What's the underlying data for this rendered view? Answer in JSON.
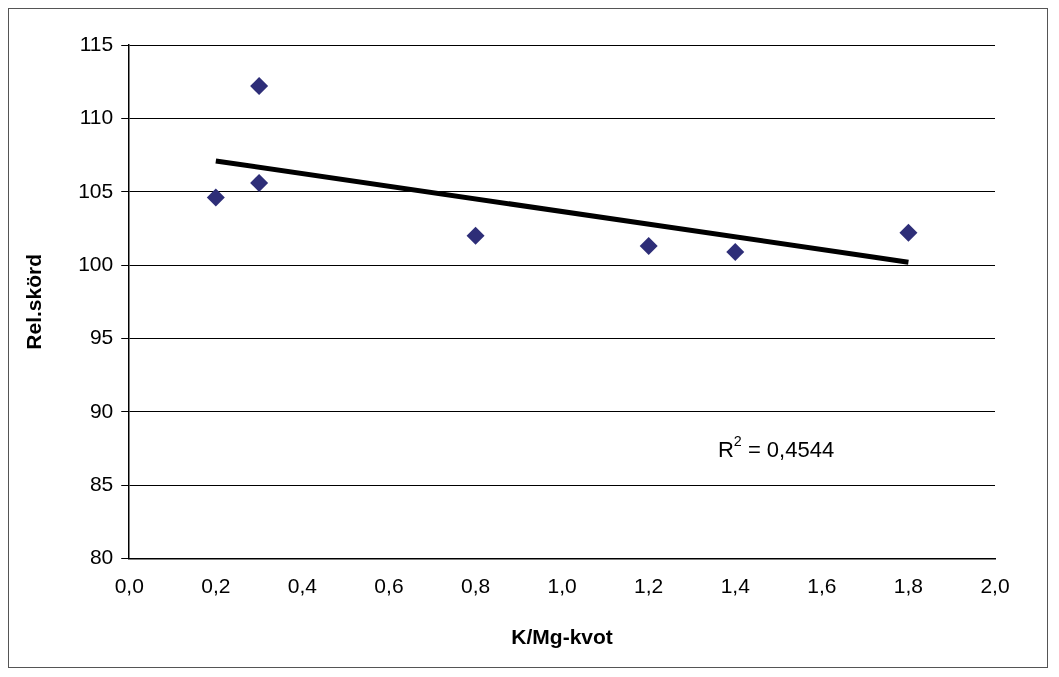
{
  "chart_data": {
    "type": "scatter",
    "xlabel": "K/Mg-kvot",
    "ylabel": "Rel.skörd",
    "x": [
      0.2,
      0.3,
      0.3,
      0.8,
      1.2,
      1.4,
      1.8
    ],
    "series": [
      {
        "type": "scatter",
        "color": "#2e2e78",
        "marker": "diamond",
        "values": [
          104.6,
          112.2,
          105.6,
          102.0,
          101.3,
          100.9,
          102.2
        ]
      },
      {
        "type": "line",
        "color": "#000000",
        "marker": "none",
        "line_style": "solid",
        "x": [
          0.2,
          1.8
        ],
        "values": [
          107.1,
          100.2
        ]
      }
    ],
    "xlim": [
      0,
      2
    ],
    "xticks": [
      {
        "value": 0,
        "label": "0,0"
      },
      {
        "value": 0.2,
        "label": "0,2"
      },
      {
        "value": 0.4,
        "label": "0,4"
      },
      {
        "value": 0.6,
        "label": "0,6"
      },
      {
        "value": 0.8,
        "label": "0,8"
      },
      {
        "value": 1,
        "label": "1,0"
      },
      {
        "value": 1.2,
        "label": "1,2"
      },
      {
        "value": 1.4,
        "label": "1,4"
      },
      {
        "value": 1.6,
        "label": "1,6"
      },
      {
        "value": 1.8,
        "label": "1,8"
      },
      {
        "value": 2,
        "label": "2,0"
      }
    ],
    "ylim": [
      80,
      115
    ],
    "yticks": [
      80,
      85,
      90,
      95,
      100,
      105,
      110,
      115
    ],
    "grid": "y",
    "legend": false,
    "annotations": [
      "R$^{2}$ = 0,4544"
    ]
  }
}
